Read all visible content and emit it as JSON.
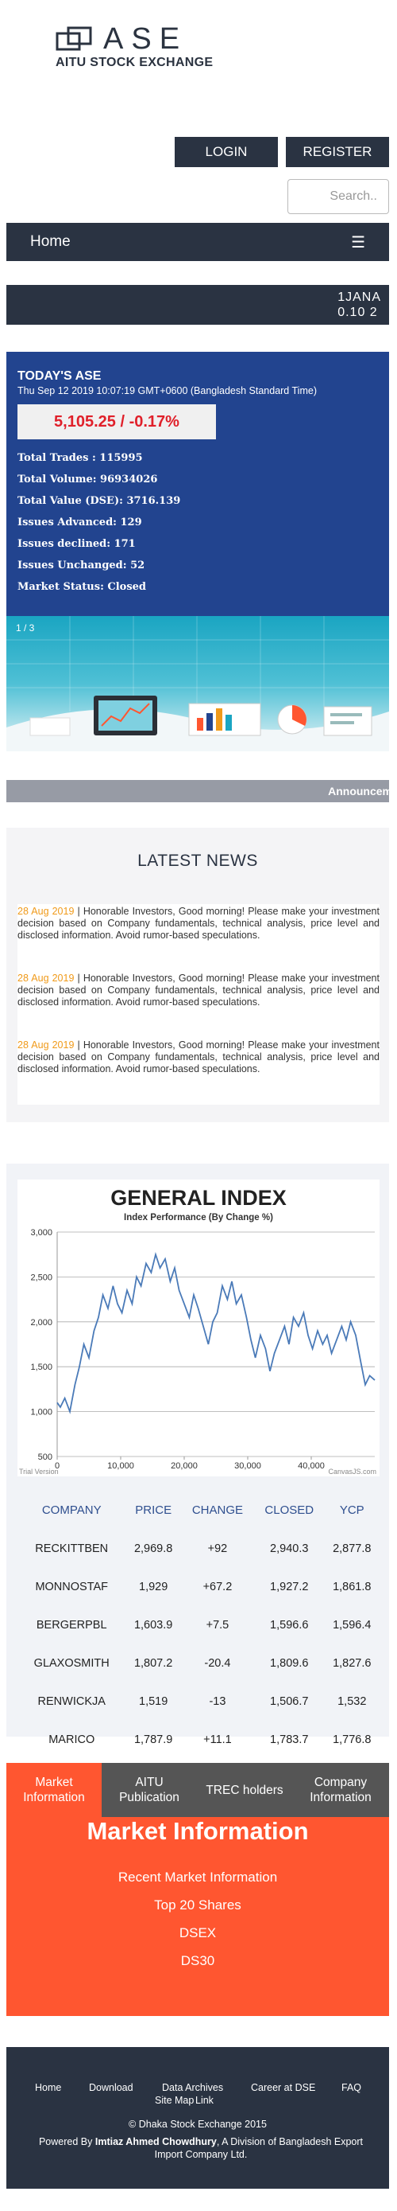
{
  "brand": {
    "title": "ASE",
    "subtitle": "AITU STOCK EXCHANGE"
  },
  "header": {
    "login_label": "LOGIN",
    "register_label": "REGISTER",
    "search_placeholder": "Search.."
  },
  "nav": {
    "home_label": "Home",
    "menu_icon": "☰"
  },
  "ticker": {
    "line1": "1JANA",
    "line2": "0.10 2"
  },
  "ase_summary": {
    "title": "TODAY'S ASE",
    "datetime": "Thu Sep 12 2019 10:07:19 GMT+0600 (Bangladesh Standard Time)",
    "index_value": "5,105.25 / -0.17%",
    "stats": [
      "Total Trades : 115995",
      "Total Volume: 96934026",
      "Total Value (DSE): 3716.139",
      "Issues Advanced: 129",
      "Issues declined: 171",
      "Issues Unchanged: 52",
      "Market Status: Closed"
    ]
  },
  "slider": {
    "counter": "1 / 3"
  },
  "announcement": {
    "text": "Announcem"
  },
  "news": {
    "title": "LATEST NEWS",
    "items": [
      {
        "date": "28 Aug 2019",
        "text": "Honorable Investors, Good morning! Please make your investment decision based on Company fundamentals, technical analysis, price level and disclosed information. Avoid rumor-based speculations."
      },
      {
        "date": "28 Aug 2019",
        "text": "Honorable Investors, Good morning! Please make your investment decision based on Company fundamentals, technical analysis, price level and disclosed information. Avoid rumor-based speculations."
      },
      {
        "date": "28 Aug 2019",
        "text": "Honorable Investors, Good morning! Please make your investment decision based on Company fundamentals, technical analysis, price level and disclosed information. Avoid rumor-based speculations."
      }
    ]
  },
  "chart_data": {
    "type": "line",
    "title": "GENERAL INDEX",
    "subtitle": "Index Performance (By Change %)",
    "xlabel": "",
    "ylabel": "",
    "xlim": [
      0,
      50000
    ],
    "ylim": [
      500,
      3000
    ],
    "xticks": [
      0,
      10000,
      20000,
      30000,
      40000
    ],
    "xtick_labels": [
      "0",
      "10,000",
      "20,000",
      "30,000",
      "40,000"
    ],
    "yticks": [
      500,
      1000,
      1500,
      2000,
      2500,
      3000
    ],
    "ytick_labels": [
      "500",
      "1,000",
      "1,500",
      "2,000",
      "2,500",
      "3,000"
    ],
    "grid": true,
    "color": "#4a7ab8",
    "footer_left": "Trial Version",
    "footer_right": "CanvasJS.com",
    "series": [
      {
        "x": [
          0,
          500,
          1200,
          2000,
          2800,
          3500,
          4200,
          5000,
          5800,
          6500,
          7200,
          8000,
          8800,
          9500,
          10200,
          11000,
          11800,
          12500,
          13200,
          14000,
          14800,
          15500,
          16200,
          17000,
          17800,
          18500,
          19200,
          20000,
          20800,
          21500,
          22200,
          23000,
          23800,
          24500,
          25200,
          26000,
          26800,
          27500,
          28200,
          29000,
          29800,
          30500,
          31200,
          32000,
          32800,
          33500,
          34200,
          35000,
          35800,
          36500,
          37200,
          38000,
          38800,
          39500,
          40200,
          41000,
          41800,
          42500,
          43200,
          44000,
          44800,
          45500,
          46200,
          47000,
          47800,
          48500,
          49200,
          50000
        ],
        "y": [
          1100,
          1050,
          1150,
          1000,
          1300,
          1500,
          1750,
          1600,
          1900,
          2050,
          2300,
          2150,
          2400,
          2200,
          2100,
          2350,
          2200,
          2500,
          2400,
          2650,
          2550,
          2750,
          2600,
          2700,
          2450,
          2600,
          2350,
          2200,
          2050,
          2300,
          2150,
          1950,
          1750,
          2000,
          2100,
          2400,
          2250,
          2450,
          2200,
          2300,
          2050,
          1800,
          1600,
          1850,
          1700,
          1450,
          1650,
          1800,
          1950,
          1750,
          2050,
          1950,
          2100,
          1850,
          1700,
          1900,
          1750,
          1850,
          1650,
          1800,
          1950,
          1800,
          2000,
          1850,
          1550,
          1300,
          1400,
          1350
        ]
      }
    ]
  },
  "stock_table": {
    "headers": [
      "COMPANY",
      "PRICE",
      "CHANGE",
      "CLOSED",
      "YCP"
    ],
    "rows": [
      [
        "RECKITTBEN",
        "2,969.8",
        "+92",
        "2,940.3",
        "2,877.8"
      ],
      [
        "MONNOSTAF",
        "1,929",
        "+67.2",
        "1,927.2",
        "1,861.8"
      ],
      [
        "BERGERPBL",
        "1,603.9",
        "+7.5",
        "1,596.6",
        "1,596.4"
      ],
      [
        "GLAXOSMITH",
        "1,807.2",
        "-20.4",
        "1,809.6",
        "1,827.6"
      ],
      [
        "RENWICKJA",
        "1,519",
        "-13",
        "1,506.7",
        "1,532"
      ],
      [
        "MARICO",
        "1,787.9",
        "+11.1",
        "1,783.7",
        "1,776.8"
      ]
    ]
  },
  "tabs": {
    "items": [
      "Market Information",
      "AITU Publication",
      "TREC holders",
      "Company Information"
    ],
    "active_title": "Market Information",
    "links": [
      "Recent Market Information",
      "Top 20 Shares",
      "DSEX",
      "DS30"
    ]
  },
  "footer": {
    "links": [
      "Home",
      "Download",
      "Data Archives",
      "Site Map",
      "Career at DSE",
      "Link",
      "FAQ"
    ],
    "copyright": "© Dhaka Stock Exchange 2015",
    "powered_prefix": "Powered By",
    "powered_name": "Imtiaz Ahmed Chowdhury",
    "powered_suffix": ", A Division of Bangladesh Export Import Company Ltd."
  },
  "colors": {
    "navy": "#2a3342",
    "ase_blue": "#22448f",
    "accent_orange": "#ff5630",
    "news_date": "#f09a1a"
  }
}
